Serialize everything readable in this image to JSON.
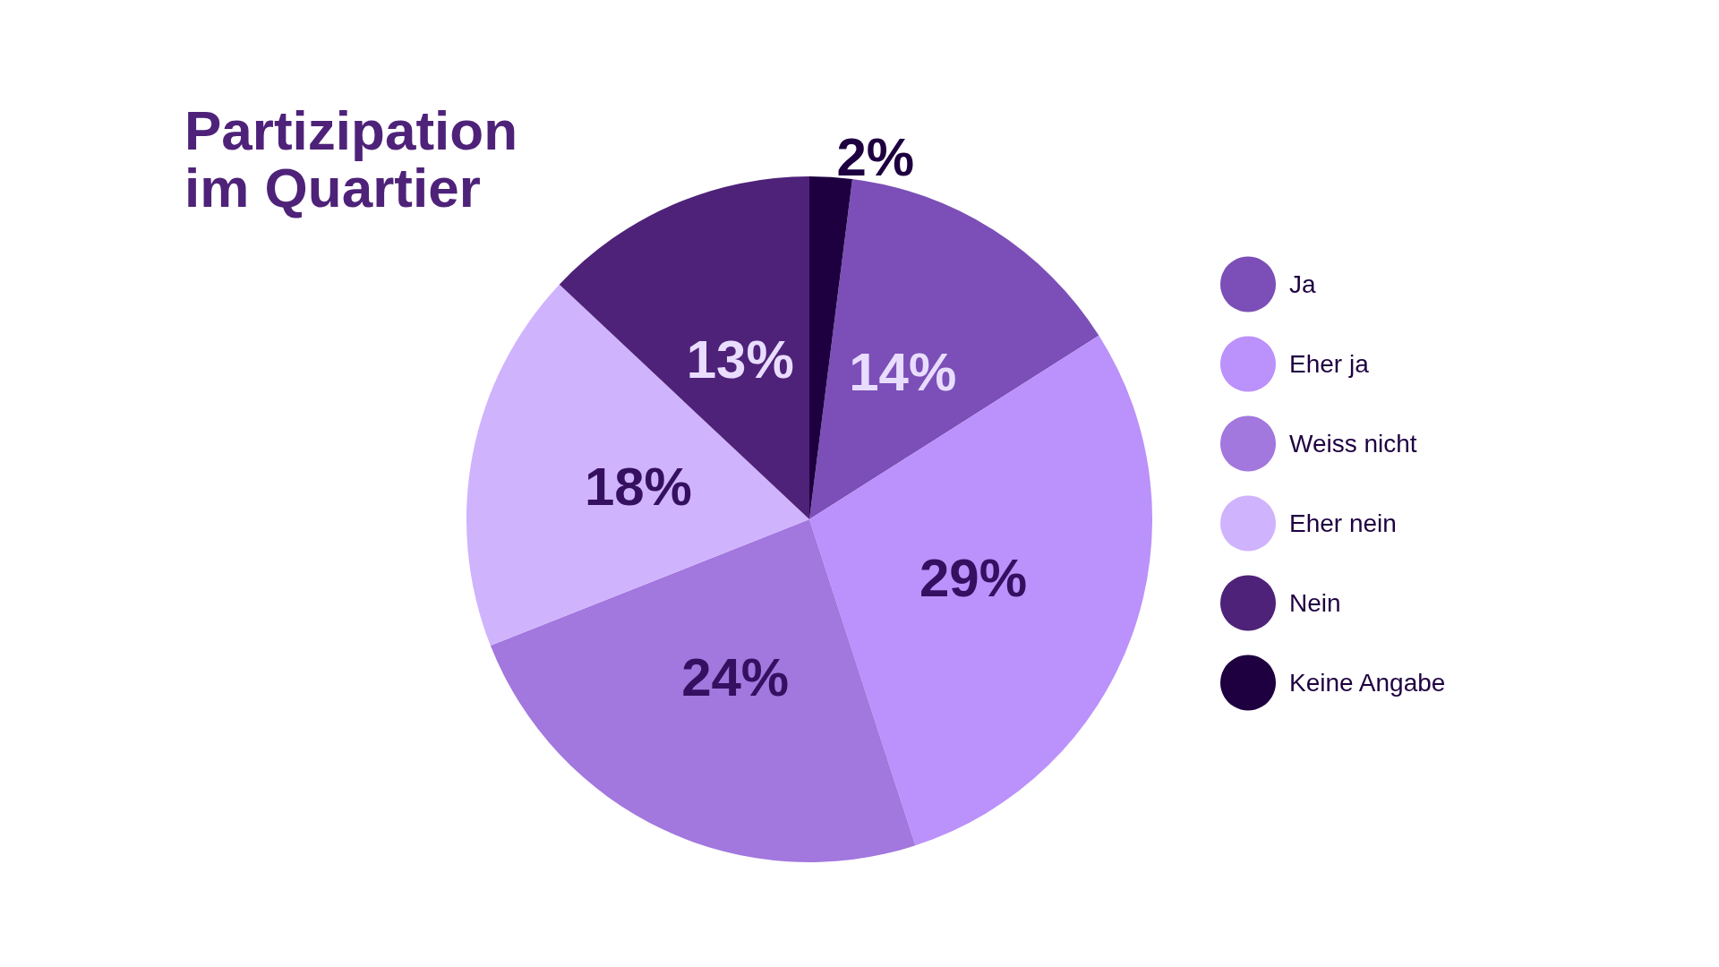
{
  "chart_data": {
    "type": "pie",
    "title": "Partizipation\nim Quartier",
    "categories": [
      "Ja",
      "Eher ja",
      "Weiss nicht",
      "Eher nein",
      "Nein",
      "Keine Angabe"
    ],
    "values": [
      14,
      29,
      24,
      18,
      13,
      2
    ],
    "value_labels": [
      "14%",
      "29%",
      "24%",
      "18%",
      "13%",
      "2%"
    ],
    "colors": [
      "#7b4fb7",
      "#bb91fb",
      "#a277de",
      "#d0b3fd",
      "#4f2279",
      "#1e0040"
    ],
    "legend": "right"
  }
}
